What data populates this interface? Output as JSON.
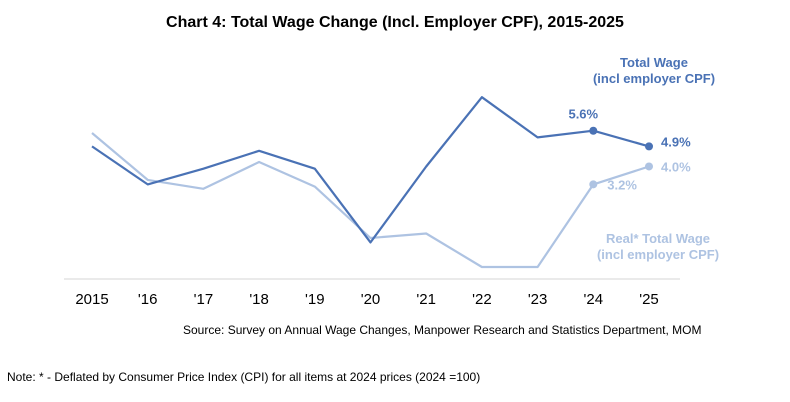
{
  "chart_data": {
    "type": "line",
    "title": "Chart 4: Total Wage Change (Incl. Employer CPF), 2015-2025",
    "categories": [
      "2015",
      "'16",
      "'17",
      "'18",
      "'19",
      "'20",
      "'21",
      "'22",
      "'23",
      "'24",
      "'25"
    ],
    "series": [
      {
        "name": "Total Wage (incl employer CPF)",
        "name_lines": [
          "Total Wage",
          "(incl employer CPF)"
        ],
        "color": "#4a72b5",
        "values": [
          4.9,
          3.2,
          3.9,
          4.7,
          3.9,
          0.6,
          4.0,
          7.1,
          5.3,
          5.6,
          4.9
        ],
        "labels": [
          {
            "index": 9,
            "text": "5.6%"
          },
          {
            "index": 10,
            "text": "4.9%"
          }
        ]
      },
      {
        "name": "Real* Total Wage (incl employer CPF)",
        "name_lines": [
          "Real* Total Wage",
          "(incl employer CPF)"
        ],
        "color": "#aec3e2",
        "values": [
          5.5,
          3.4,
          3.0,
          4.2,
          3.1,
          0.8,
          1.0,
          -0.5,
          -0.5,
          3.2,
          4.0
        ],
        "labels": [
          {
            "index": 9,
            "text": "3.2%"
          },
          {
            "index": 10,
            "text": "4.0%"
          }
        ]
      }
    ],
    "ylim": [
      -0.5,
      7.2
    ],
    "grid": false,
    "baseline": true
  },
  "source": "Source: Survey on Annual Wage Changes, Manpower Research and Statistics Department, MOM",
  "note": "Note: * - Deflated by Consumer Price Index (CPI) for all items at 2024 prices (2024 =100)"
}
